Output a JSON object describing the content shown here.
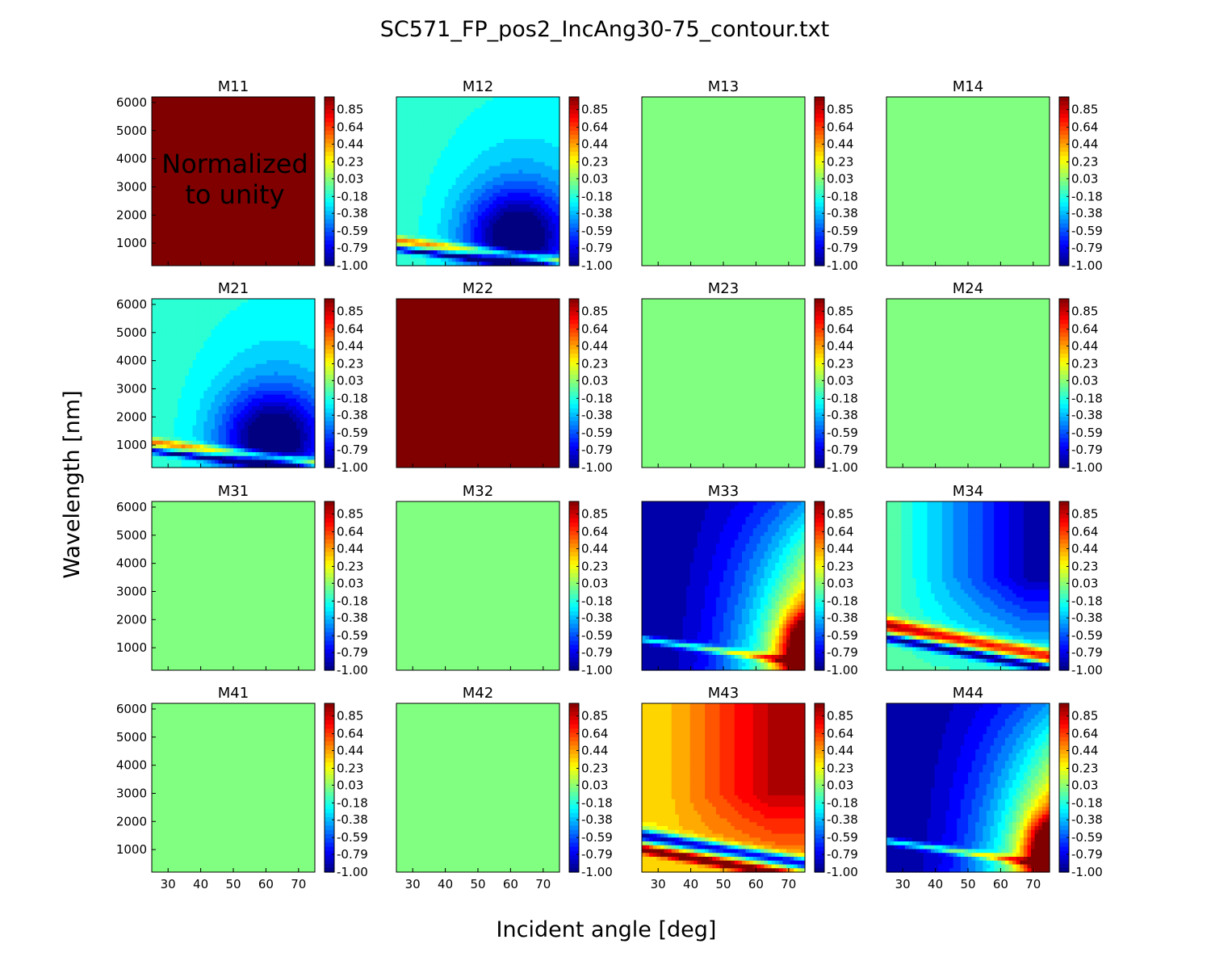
{
  "chart_data": {
    "type": "heatmap",
    "title": "SC571_FP_pos2_IncAng30-75_contour.txt",
    "xlabel": "Incident angle [deg]",
    "ylabel": "Wavelength [nm]",
    "xlim": [
      25,
      75
    ],
    "ylim": [
      200,
      6200
    ],
    "x_ticks": [
      "30",
      "40",
      "50",
      "60",
      "70"
    ],
    "y_ticks": [
      "6000",
      "5000",
      "4000",
      "3000",
      "2000",
      "1000"
    ],
    "colorbar": {
      "colormap": "jet",
      "range": [
        -1.0,
        1.0
      ],
      "ticks": [
        "0.85",
        "0.64",
        "0.44",
        "0.23",
        "0.03",
        "-0.18",
        "-0.38",
        "-0.59",
        "-0.79",
        "-1.00"
      ]
    },
    "panels": [
      {
        "name": "M11",
        "pattern": "uniform",
        "value": 1.0,
        "annotation": "Normalized\nto unity"
      },
      {
        "name": "M12",
        "pattern": "m12",
        "min_value": -1.0,
        "max_value": -0.1
      },
      {
        "name": "M13",
        "pattern": "uniform",
        "value": 0.0
      },
      {
        "name": "M14",
        "pattern": "uniform",
        "value": 0.0
      },
      {
        "name": "M21",
        "pattern": "m12",
        "min_value": -1.0,
        "max_value": -0.1
      },
      {
        "name": "M22",
        "pattern": "uniform",
        "value": 1.0
      },
      {
        "name": "M23",
        "pattern": "uniform",
        "value": 0.0
      },
      {
        "name": "M24",
        "pattern": "uniform",
        "value": 0.0
      },
      {
        "name": "M31",
        "pattern": "uniform",
        "value": 0.0
      },
      {
        "name": "M32",
        "pattern": "uniform",
        "value": 0.0
      },
      {
        "name": "M33",
        "pattern": "m33",
        "min_value": -1.0,
        "max_value": 1.0
      },
      {
        "name": "M34",
        "pattern": "m34",
        "min_value": -1.0,
        "max_value": 0.9
      },
      {
        "name": "M41",
        "pattern": "uniform",
        "value": 0.0
      },
      {
        "name": "M42",
        "pattern": "uniform",
        "value": 0.0
      },
      {
        "name": "M43",
        "pattern": "m43",
        "min_value": -1.0,
        "max_value": 1.0
      },
      {
        "name": "M44",
        "pattern": "m33",
        "min_value": -1.0,
        "max_value": 1.0
      }
    ]
  }
}
